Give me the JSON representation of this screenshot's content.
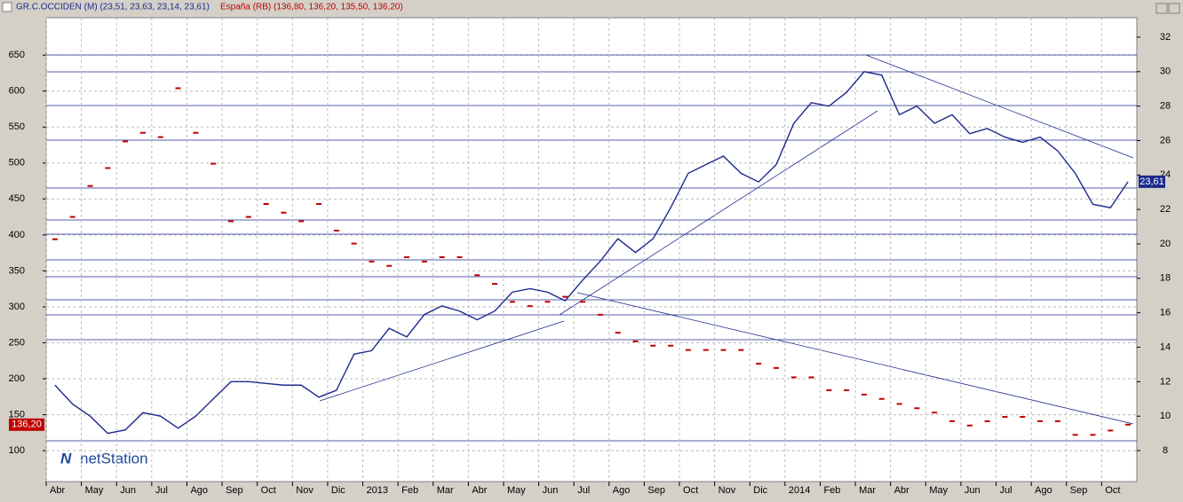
{
  "chart_data": {
    "type": "line",
    "brand": "netStation",
    "categories": [
      "Abr",
      null,
      "May",
      null,
      "Jun",
      null,
      "Jul",
      null,
      "Ago",
      null,
      "Sep",
      null,
      "Oct",
      null,
      "Nov",
      null,
      "Dic",
      null,
      "2013",
      null,
      "Feb",
      null,
      "Mar",
      null,
      "Abr",
      null,
      "May",
      null,
      "Jun",
      null,
      "Jul",
      null,
      "Ago",
      null,
      "Sep",
      null,
      "Oct",
      null,
      "Nov",
      null,
      "Dic",
      null,
      "2014",
      null,
      "Feb",
      null,
      "Mar",
      null,
      "Abr",
      null,
      "May",
      null,
      "Jun",
      null,
      "Jul",
      null,
      "Ago",
      null,
      "Sep",
      null,
      "Oct",
      null
    ],
    "series": [
      {
        "name": "GR.C.OCCIDEN (M) (23,51, 23,63, 23,14, 23,61)",
        "color": "#1c2a8c",
        "axis": "y2",
        "values": [
          11.8,
          10.7,
          10.0,
          9.0,
          9.2,
          10.2,
          10.0,
          9.3,
          10.0,
          11.0,
          12.0,
          12.0,
          11.9,
          11.8,
          11.8,
          11.1,
          11.5,
          13.6,
          13.8,
          15.1,
          14.6,
          15.9,
          16.4,
          16.1,
          15.6,
          16.1,
          17.2,
          17.4,
          17.2,
          16.7,
          17.9,
          19.0,
          20.3,
          19.5,
          20.3,
          22.1,
          24.1,
          24.6,
          25.1,
          24.1,
          23.6,
          24.6,
          27.0,
          28.2,
          28.0,
          28.8,
          30.0,
          29.8,
          27.5,
          28.0,
          27.0,
          27.5,
          26.4,
          26.7,
          26.2,
          25.9,
          26.2,
          25.4,
          24.1,
          22.3,
          22.1,
          23.61
        ]
      },
      {
        "name": "España (RB) (136,80, 136,20, 135,50, 136,20)",
        "color": "#c00000",
        "values": [
          394,
          425,
          468,
          493,
          530,
          542,
          536,
          604,
          542,
          499,
          419,
          425,
          443,
          431,
          419,
          443,
          406,
          388,
          363,
          357,
          369,
          363,
          369,
          369,
          344,
          332,
          307,
          301,
          307,
          314,
          307,
          289,
          264,
          252,
          246,
          246,
          240,
          240,
          240,
          240,
          221,
          215,
          202,
          202,
          184,
          184,
          178,
          172,
          165,
          159,
          153,
          141,
          135,
          141,
          147,
          147,
          141,
          141,
          122,
          122,
          128,
          136.2
        ]
      }
    ],
    "ylim": [
      57,
      702
    ],
    "yticks": [
      100,
      150,
      200,
      250,
      300,
      350,
      400,
      450,
      500,
      550,
      600,
      650
    ],
    "y2lim": [
      6.2,
      33.13
    ],
    "y2ticks": [
      8,
      10,
      12,
      14,
      16,
      18,
      20,
      22,
      24,
      26,
      28,
      30,
      32
    ],
    "y_marker": {
      "value": 136.2,
      "label": "136,20"
    },
    "y2_marker": {
      "value": 23.61,
      "label": "23,61"
    },
    "grid": true
  }
}
